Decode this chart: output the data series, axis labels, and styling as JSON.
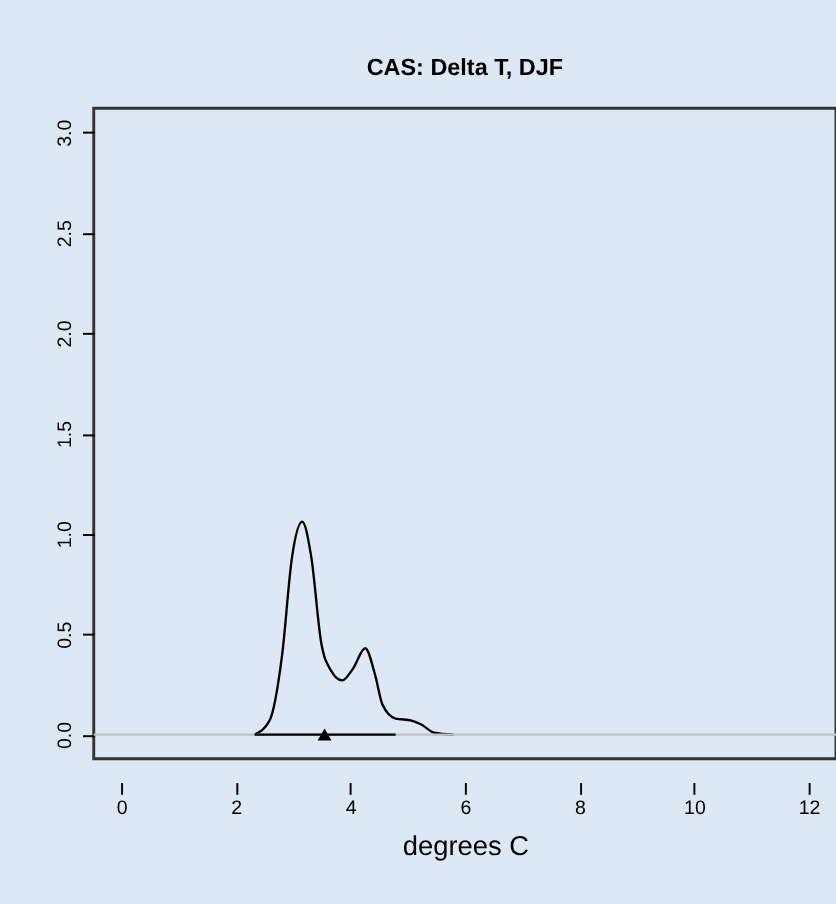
{
  "chart_data": {
    "type": "line",
    "title": "CAS: Delta T, DJF",
    "xlabel": "degrees C",
    "xlim": [
      -0.48,
      12.48
    ],
    "xticks": [
      0,
      2,
      4,
      6,
      8,
      10,
      12
    ],
    "ylim": [
      -0.12,
      3.12
    ],
    "yticks": [
      {
        "value": 0,
        "label": "0.0"
      },
      {
        "value": 0.5,
        "label": "0.5"
      },
      {
        "value": 1,
        "label": "1.0"
      },
      {
        "value": 1.5,
        "label": "1.5"
      },
      {
        "value": 2,
        "label": "2.0"
      },
      {
        "value": 2.5,
        "label": "2.5"
      },
      {
        "value": 3,
        "label": "3.0"
      }
    ],
    "grid": false,
    "series": [
      {
        "color": "#000000",
        "x": [
          2.33,
          2.59,
          2.81,
          2.98,
          3.16,
          3.32,
          3.49,
          3.66,
          3.86,
          4.05,
          4.26,
          4.43,
          4.56,
          4.79,
          5.07,
          5.24,
          5.46,
          5.8
        ],
        "values": [
          0.0,
          0.07,
          0.4,
          0.88,
          1.06,
          0.88,
          0.46,
          0.32,
          0.27,
          0.33,
          0.43,
          0.3,
          0.15,
          0.08,
          0.07,
          0.05,
          0.01,
          0.0
        ]
      },
      {
        "color": "#000000",
        "x": [
          2.33,
          4.79
        ],
        "values": [
          0,
          0
        ]
      },
      {
        "type": "scatter",
        "marker": "triangle",
        "color": "#000000",
        "x": [
          3.55
        ],
        "values": [
          0
        ]
      }
    ],
    "ref_lines": [
      {
        "axis": "y",
        "value": 0,
        "color": "#c0c0c0"
      }
    ]
  }
}
